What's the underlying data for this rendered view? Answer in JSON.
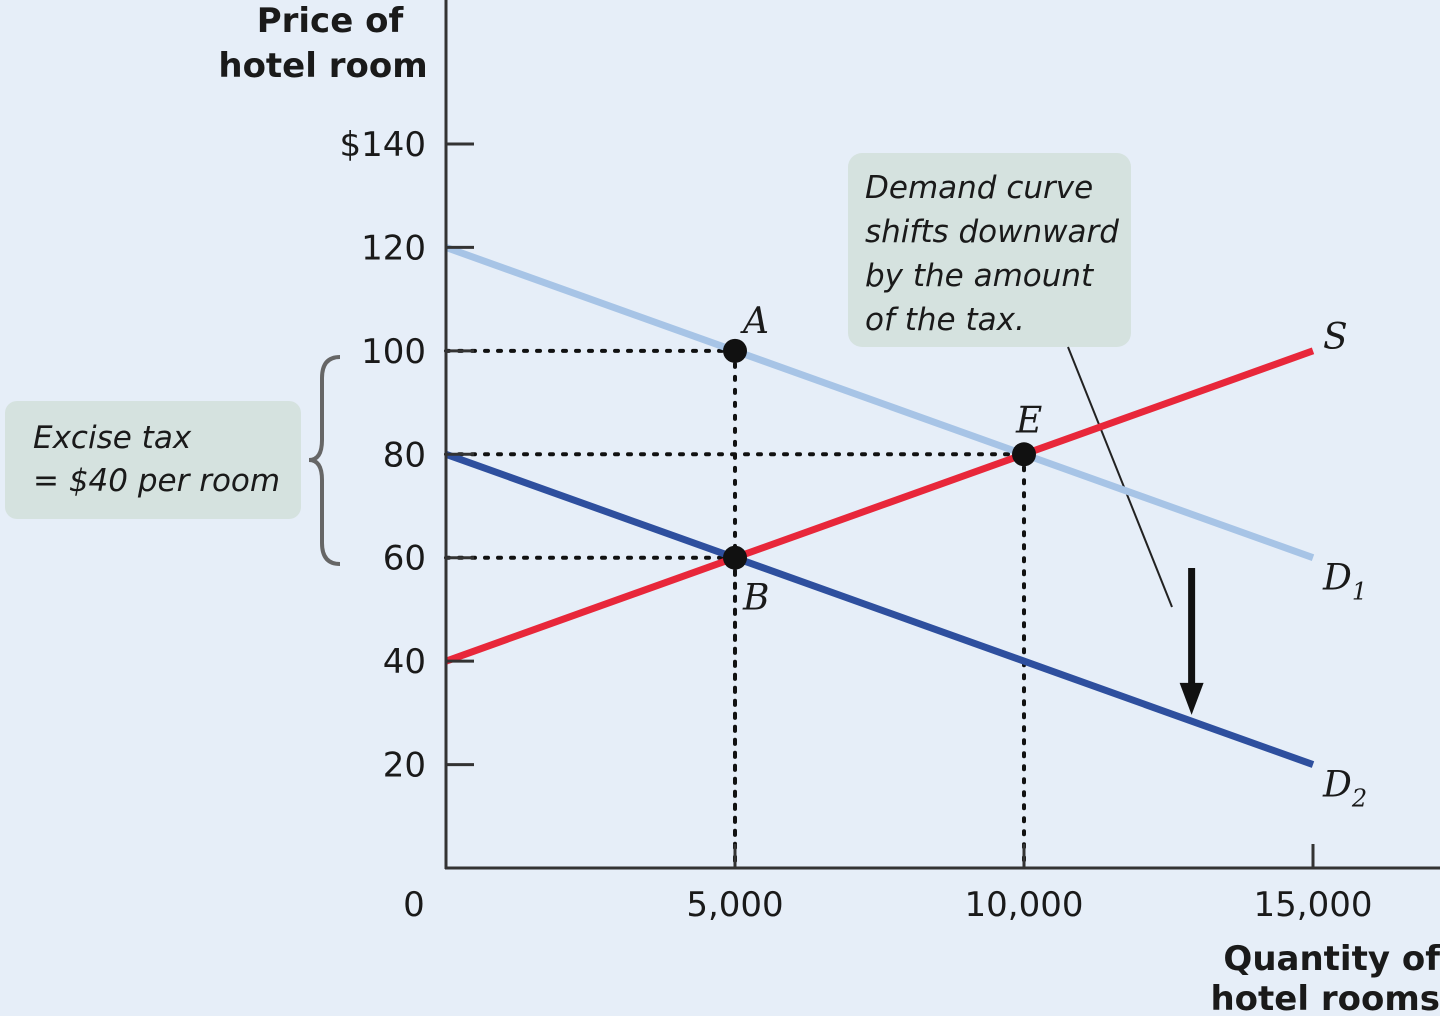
{
  "chart_data": {
    "type": "line",
    "ylabel": [
      "Price of",
      "hotel room"
    ],
    "xlabel": [
      "Quantity of",
      "hotel rooms"
    ],
    "xlim": [
      0,
      15000
    ],
    "ylim": [
      0,
      140
    ],
    "y_ticks": [
      {
        "value": 140,
        "label": "$140"
      },
      {
        "value": 120,
        "label": "120"
      },
      {
        "value": 100,
        "label": "100"
      },
      {
        "value": 80,
        "label": "80"
      },
      {
        "value": 60,
        "label": "60"
      },
      {
        "value": 40,
        "label": "40"
      },
      {
        "value": 20,
        "label": "20"
      }
    ],
    "x_ticks": [
      {
        "value": 5000,
        "label": "5,000"
      },
      {
        "value": 10000,
        "label": "10,000"
      },
      {
        "value": 15000,
        "label": "15,000"
      }
    ],
    "origin_label": "0",
    "series": [
      {
        "name": "D1",
        "label_main": "D",
        "label_sub": "1",
        "color": "#a7c4e6",
        "points": [
          [
            0,
            120
          ],
          [
            15000,
            60
          ]
        ]
      },
      {
        "name": "S",
        "label_main": "S",
        "label_sub": "",
        "color": "#e8273a",
        "points": [
          [
            0,
            40
          ],
          [
            15000,
            100
          ]
        ]
      },
      {
        "name": "D2",
        "label_main": "D",
        "label_sub": "2",
        "color": "#2e4f9e",
        "points": [
          [
            0,
            80
          ],
          [
            15000,
            20
          ]
        ]
      }
    ],
    "points": [
      {
        "label": "A",
        "x": 5000,
        "y": 100
      },
      {
        "label": "E",
        "x": 10000,
        "y": 80
      },
      {
        "label": "B",
        "x": 5000,
        "y": 60
      }
    ],
    "annotations": {
      "demand_shift": [
        "Demand curve",
        "shifts downward",
        "by the amount",
        "of the tax."
      ],
      "excise_tax": [
        "Excise tax",
        "= $40 per room"
      ]
    },
    "arrow": {
      "x": 12900,
      "y_from": 58,
      "y_to": 30
    }
  },
  "colors": {
    "background": "#e6eef8",
    "annotation_box": "#d5e2df",
    "axis": "#333333",
    "marker": "#111111"
  }
}
